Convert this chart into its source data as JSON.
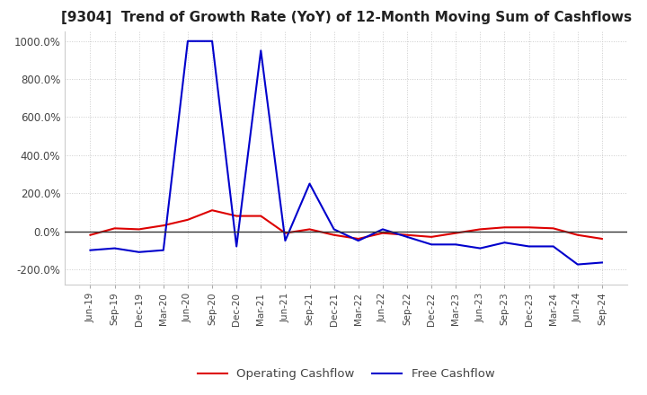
{
  "title": "[9304]  Trend of Growth Rate (YoY) of 12-Month Moving Sum of Cashflows",
  "title_fontsize": 11,
  "ylim": [
    -280,
    1050
  ],
  "yticks": [
    -200,
    0,
    200,
    400,
    600,
    800,
    1000
  ],
  "ytick_labels": [
    "-200.0%",
    "0.0%",
    "200.0%",
    "400.0%",
    "600.0%",
    "800.0%",
    "1000.0%"
  ],
  "background_color": "#ffffff",
  "plot_bg_color": "#ffffff",
  "grid_color": "#cccccc",
  "operating_color": "#dd0000",
  "free_color": "#0000cc",
  "legend_labels": [
    "Operating Cashflow",
    "Free Cashflow"
  ],
  "x_labels": [
    "Jun-19",
    "Sep-19",
    "Dec-19",
    "Mar-20",
    "Jun-20",
    "Sep-20",
    "Dec-20",
    "Mar-21",
    "Jun-21",
    "Sep-21",
    "Dec-21",
    "Mar-22",
    "Jun-22",
    "Sep-22",
    "Dec-22",
    "Mar-23",
    "Jun-23",
    "Sep-23",
    "Dec-23",
    "Mar-24",
    "Jun-24",
    "Sep-24"
  ],
  "operating_cashflow": [
    -20,
    15,
    10,
    30,
    60,
    110,
    80,
    80,
    -10,
    10,
    -20,
    -40,
    -10,
    -20,
    -30,
    -10,
    10,
    20,
    20,
    15,
    -20,
    -40
  ],
  "free_cashflow": [
    -100,
    -90,
    -110,
    -100,
    1000,
    1000,
    -80,
    950,
    -50,
    250,
    10,
    -50,
    10,
    -30,
    -70,
    -70,
    -90,
    -60,
    -80,
    -80,
    -175,
    -165
  ]
}
